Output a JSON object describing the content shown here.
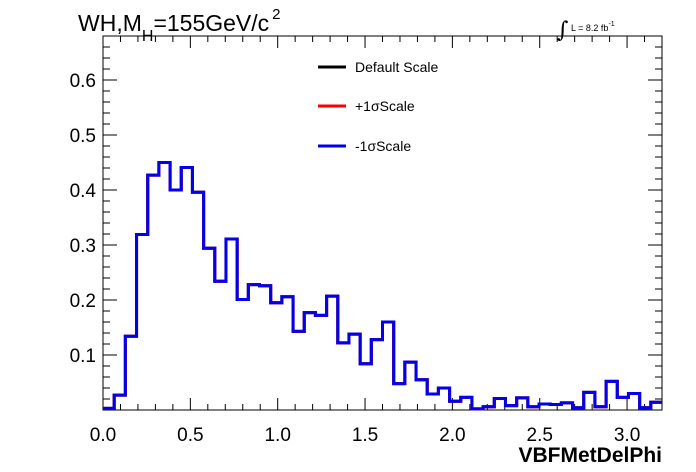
{
  "chart_data": {
    "type": "step",
    "title": "WH,M",
    "title_subscript": "H",
    "title_rest": "=155GeV/c",
    "title_superscript": "2",
    "lumi_label": "L = 8.2 fb",
    "lumi_exponent": "-1",
    "xlabel": "VBFMetDelPhi",
    "ylabel": "",
    "xlim": [
      0.0,
      3.2
    ],
    "ylim": [
      0.0,
      0.68
    ],
    "xticks": [
      "0.0",
      "0.5",
      "1.0",
      "1.5",
      "2.0",
      "2.5",
      "3.0"
    ],
    "yticks": [
      "0.1",
      "0.2",
      "0.3",
      "0.4",
      "0.5",
      "0.6"
    ],
    "bin_edges_start": 0.0,
    "bin_width": 0.064,
    "series": [
      {
        "name": "Default Scale",
        "color": "#000000",
        "values": [
          0.003,
          0.027,
          0.134,
          0.319,
          0.427,
          0.45,
          0.4,
          0.441,
          0.396,
          0.294,
          0.234,
          0.311,
          0.201,
          0.228,
          0.226,
          0.195,
          0.206,
          0.143,
          0.177,
          0.172,
          0.207,
          0.122,
          0.138,
          0.084,
          0.128,
          0.16,
          0.048,
          0.087,
          0.055,
          0.029,
          0.04,
          0.016,
          0.023,
          0.002,
          0.006,
          0.021,
          0.008,
          0.022,
          0.006,
          0.011,
          0.01,
          0.013,
          0.004,
          0.032,
          0.006,
          0.052,
          0.023,
          0.03,
          0.004,
          0.014
        ]
      },
      {
        "name": "+1σScale",
        "color": "#ff0000",
        "values": [
          0.003,
          0.027,
          0.134,
          0.319,
          0.427,
          0.45,
          0.4,
          0.441,
          0.396,
          0.294,
          0.234,
          0.311,
          0.201,
          0.228,
          0.226,
          0.195,
          0.206,
          0.143,
          0.177,
          0.172,
          0.207,
          0.122,
          0.138,
          0.084,
          0.128,
          0.16,
          0.048,
          0.087,
          0.055,
          0.029,
          0.04,
          0.016,
          0.023,
          0.002,
          0.006,
          0.021,
          0.008,
          0.022,
          0.006,
          0.011,
          0.01,
          0.013,
          0.004,
          0.032,
          0.006,
          0.052,
          0.023,
          0.03,
          0.004,
          0.014
        ]
      },
      {
        "name": "-1σScale",
        "color": "#0000ee",
        "values": [
          0.003,
          0.027,
          0.134,
          0.319,
          0.427,
          0.45,
          0.4,
          0.441,
          0.396,
          0.294,
          0.234,
          0.311,
          0.201,
          0.228,
          0.226,
          0.195,
          0.206,
          0.143,
          0.177,
          0.172,
          0.207,
          0.122,
          0.138,
          0.084,
          0.128,
          0.16,
          0.048,
          0.087,
          0.055,
          0.029,
          0.04,
          0.016,
          0.023,
          0.002,
          0.006,
          0.021,
          0.008,
          0.022,
          0.006,
          0.011,
          0.01,
          0.013,
          0.004,
          0.032,
          0.006,
          0.052,
          0.023,
          0.03,
          0.004,
          0.014
        ]
      }
    ],
    "legend_placement": "top-right",
    "grid": false
  }
}
